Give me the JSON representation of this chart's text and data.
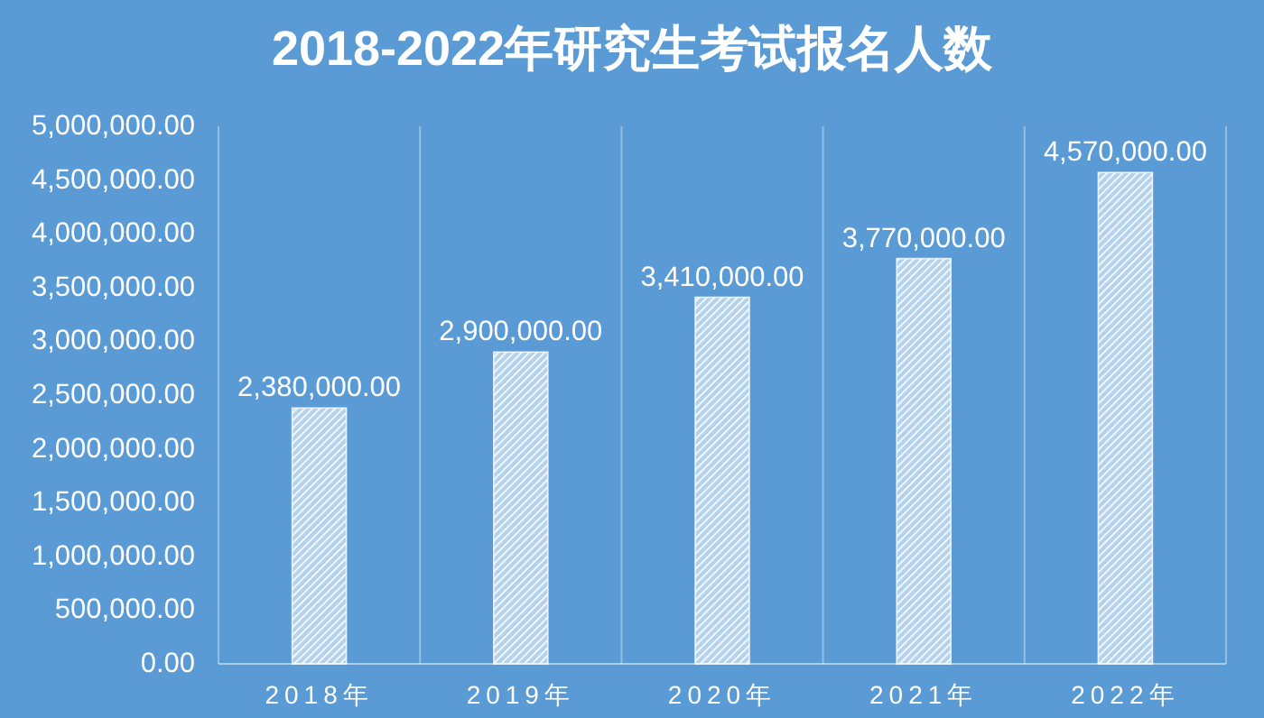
{
  "chart_data": {
    "type": "bar",
    "title": "2018-2022年研究生考试报名人数",
    "categories": [
      "2018年",
      "2019年",
      "2020年",
      "2021年",
      "2022年"
    ],
    "values": [
      2380000,
      2900000,
      3410000,
      3770000,
      4570000
    ],
    "color": "#ffffff",
    "ylim": [
      0,
      5000000
    ],
    "yticks": [
      {
        "value": 0,
        "label": "0.00"
      },
      {
        "value": 500000,
        "label": "500,000.00"
      },
      {
        "value": 1000000,
        "label": "1,000,000.00"
      },
      {
        "value": 1500000,
        "label": "1,500,000.00"
      },
      {
        "value": 2000000,
        "label": "2,000,000.00"
      },
      {
        "value": 2500000,
        "label": "2,500,000.00"
      },
      {
        "value": 3000000,
        "label": "3,000,000.00"
      },
      {
        "value": 3500000,
        "label": "3,500,000.00"
      },
      {
        "value": 4000000,
        "label": "4,000,000.00"
      },
      {
        "value": 4500000,
        "label": "4,500,000.00"
      },
      {
        "value": 5000000,
        "label": "5,000,000.00"
      }
    ],
    "value_labels": [
      "2,380,000.00",
      "2,900,000.00",
      "3,410,000.00",
      "3,770,000.00",
      "4,570,000.00"
    ],
    "grid": "x"
  }
}
